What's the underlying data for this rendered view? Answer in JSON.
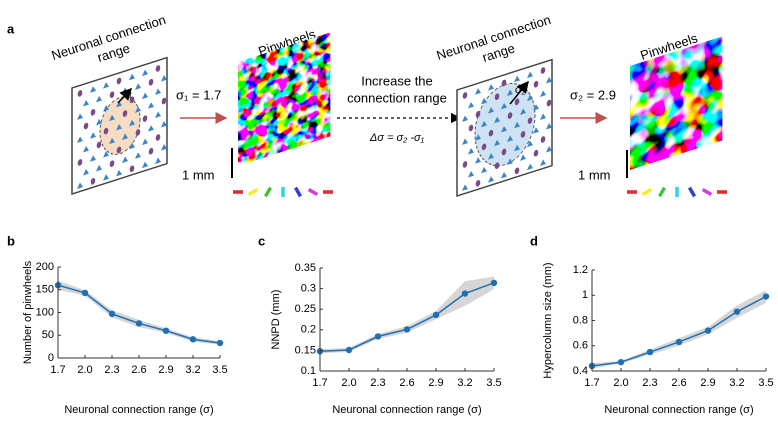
{
  "panel_a": {
    "label": "a",
    "left_model": {
      "title": [
        "Neuronal connection",
        "range"
      ],
      "sigma": "σ₁"
    },
    "left_map": {
      "title": "Pinwheels",
      "sigma_value": "σ₁ = 1.7",
      "scale": "1 mm"
    },
    "transition": {
      "text": [
        "Increase the",
        "connection range"
      ],
      "formula": "Δσ = σ₂ -σ₁"
    },
    "right_model": {
      "title": [
        "Neuronal connection",
        "range"
      ],
      "sigma": "σ₂"
    },
    "right_map": {
      "title": "Pinwheels",
      "sigma_value": "σ₂ = 2.9",
      "scale": "1 mm"
    }
  },
  "chart_data": [
    {
      "type": "line",
      "panel_label": "b",
      "x_label": "Neuronal connection range (σ)",
      "y_label": "Number of pinwheels",
      "x": [
        1.7,
        2.0,
        2.3,
        2.6,
        2.9,
        3.2,
        3.5
      ],
      "xlim": [
        1.7,
        3.5
      ],
      "xticks": [
        1.7,
        {
          "value": 2.0,
          "label": "2.0"
        },
        2.3,
        2.6,
        2.9,
        3.2,
        3.5
      ],
      "ylim": [
        0,
        200
      ],
      "yticks": [
        0,
        50,
        100,
        150,
        200
      ],
      "band_color": "#d6d6d6",
      "series": [
        {
          "color": "#1f6fb5",
          "values": [
            160,
            143,
            97,
            76,
            60,
            41,
            33
          ],
          "errors": [
            10,
            6,
            8,
            8,
            5,
            5,
            4
          ]
        }
      ]
    },
    {
      "type": "line",
      "panel_label": "c",
      "x_label": "Neuronal connection range (σ)",
      "y_label": "NNPD (mm)",
      "x": [
        1.7,
        2.0,
        2.3,
        2.6,
        2.9,
        3.2,
        3.5
      ],
      "xlim": [
        1.7,
        3.5
      ],
      "xticks": [
        1.7,
        {
          "value": 2.0,
          "label": "2.0"
        },
        2.3,
        2.6,
        2.9,
        3.2,
        3.5
      ],
      "ylim": [
        0.1,
        0.35
      ],
      "yticks": [
        0.1,
        0.15,
        0.2,
        0.25,
        0.3,
        0.35
      ],
      "band_color": "#d6d6d6",
      "series": [
        {
          "color": "#1f6fb5",
          "values": [
            0.148,
            0.151,
            0.184,
            0.201,
            0.236,
            0.288,
            0.314
          ],
          "errors": [
            0.005,
            0.005,
            0.006,
            0.008,
            0.01,
            0.03,
            0.015
          ]
        }
      ]
    },
    {
      "type": "line",
      "panel_label": "d",
      "x_label": "Neuronal connection range (σ)",
      "y_label": "Hypercolumn size (mm)",
      "x": [
        1.7,
        2.0,
        2.3,
        2.6,
        2.9,
        3.2,
        3.5
      ],
      "xlim": [
        1.7,
        3.5
      ],
      "xticks": [
        1.7,
        {
          "value": 2.0,
          "label": "2.0"
        },
        2.3,
        2.6,
        2.9,
        3.2,
        3.5
      ],
      "ylim": [
        0.4,
        1.2
      ],
      "yticks": [
        0.4,
        0.6,
        0.8,
        1,
        1.2
      ],
      "band_color": "#d6d6d6",
      "series": [
        {
          "color": "#1f6fb5",
          "values": [
            0.44,
            0.47,
            0.55,
            0.63,
            0.72,
            0.87,
            0.99
          ],
          "errors": [
            0.02,
            0.01,
            0.02,
            0.03,
            0.03,
            0.05,
            0.05
          ]
        }
      ]
    }
  ]
}
